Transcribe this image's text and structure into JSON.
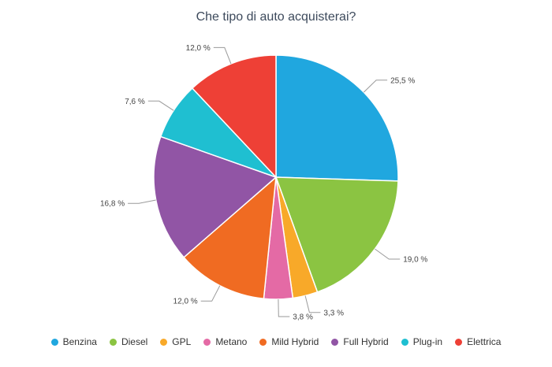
{
  "chart_data": {
    "type": "pie",
    "title": "Che tipo di auto acquisterai?",
    "slices": [
      {
        "name": "Benzina",
        "value": 25.5,
        "label": "25,5 %",
        "color": "#20a7df"
      },
      {
        "name": "Diesel",
        "value": 19.0,
        "label": "19,0 %",
        "color": "#8bc442"
      },
      {
        "name": "GPL",
        "value": 3.3,
        "label": "3,3 %",
        "color": "#f8a929"
      },
      {
        "name": "Metano",
        "value": 3.8,
        "label": "3,8 %",
        "color": "#e46aa5"
      },
      {
        "name": "Mild Hybrid",
        "value": 12.0,
        "label": "12,0 %",
        "color": "#f06b22"
      },
      {
        "name": "Full Hybrid",
        "value": 16.8,
        "label": "16,8 %",
        "color": "#9155a5"
      },
      {
        "name": "Plug-in",
        "value": 7.6,
        "label": "7,6 %",
        "color": "#1fbfd1"
      },
      {
        "name": "Elettrica",
        "value": 12.0,
        "label": "12,0 %",
        "color": "#ee4036"
      }
    ],
    "legend": "bottom"
  }
}
